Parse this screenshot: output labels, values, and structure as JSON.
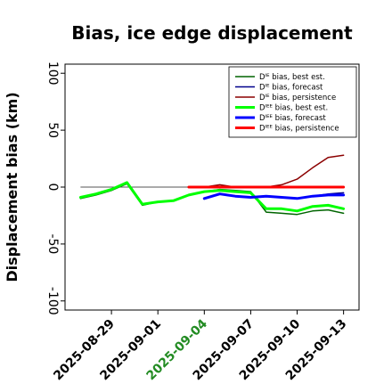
{
  "chart_data": {
    "type": "line",
    "title": "Bias, ice edge displacement",
    "ylabel": "Displacement bias (km)",
    "xlabel": "",
    "ylim": [
      -108,
      108
    ],
    "y_ticks": [
      100,
      50,
      0,
      -50,
      -100
    ],
    "x_ticks": [
      "2025-08-29",
      "2025-09-01",
      "2025-09-04",
      "2025-09-07",
      "2025-09-10",
      "2025-09-13"
    ],
    "x_tick_colors": [
      "#000000",
      "#000000",
      "#228B22",
      "#000000",
      "#000000",
      "#000000"
    ],
    "x_range": [
      "2025-08-26",
      "2025-09-14"
    ],
    "zero_line_range": [
      "2025-08-27",
      "2025-09-13"
    ],
    "legend_position": "upper right",
    "series": [
      {
        "name": "Dᴵᴱ bias, best est.",
        "color": "#006400",
        "width": 1.5,
        "x": [
          "2025-08-27",
          "2025-08-28",
          "2025-08-29",
          "2025-08-30",
          "2025-08-31",
          "2025-09-01",
          "2025-09-02",
          "2025-09-03",
          "2025-09-04",
          "2025-09-05",
          "2025-09-06",
          "2025-09-07",
          "2025-09-08",
          "2025-09-09",
          "2025-09-10",
          "2025-09-11",
          "2025-09-12",
          "2025-09-13"
        ],
        "values": [
          -10,
          -7,
          -3,
          3,
          -16,
          -13,
          -12,
          -7,
          -4,
          -2,
          -3,
          -4,
          -22,
          -23,
          -24,
          -21,
          -20,
          -23
        ]
      },
      {
        "name": "Dᴵᴱ bias, forecast",
        "color": "#00008B",
        "width": 1.5,
        "x": [
          "2025-09-04",
          "2025-09-05",
          "2025-09-06",
          "2025-09-07",
          "2025-09-08",
          "2025-09-09",
          "2025-09-10",
          "2025-09-11",
          "2025-09-12",
          "2025-09-13"
        ],
        "values": [
          -10,
          -6,
          -8,
          -9,
          -8,
          -9,
          -10,
          -8,
          -6,
          -5
        ]
      },
      {
        "name": "Dᴵᴱ bias, persistence",
        "color": "#8B0000",
        "width": 1.5,
        "x": [
          "2025-09-03",
          "2025-09-04",
          "2025-09-05",
          "2025-09-06",
          "2025-09-07",
          "2025-09-08",
          "2025-09-09",
          "2025-09-10",
          "2025-09-11",
          "2025-09-12",
          "2025-09-13"
        ],
        "values": [
          0,
          0,
          2,
          0,
          0,
          0,
          2,
          7,
          17,
          26,
          28
        ]
      },
      {
        "name": "Dᴵᴱᴱ bias, best est.",
        "color": "#00FF00",
        "width": 3,
        "x": [
          "2025-08-27",
          "2025-08-28",
          "2025-08-29",
          "2025-08-30",
          "2025-08-31",
          "2025-09-01",
          "2025-09-02",
          "2025-09-03",
          "2025-09-04",
          "2025-09-05",
          "2025-09-06",
          "2025-09-07",
          "2025-09-08",
          "2025-09-09",
          "2025-09-10",
          "2025-09-11",
          "2025-09-12",
          "2025-09-13"
        ],
        "values": [
          -9,
          -6,
          -2,
          4,
          -15,
          -13,
          -12,
          -7,
          -4,
          -3,
          -4,
          -5,
          -19,
          -19,
          -21,
          -17,
          -16,
          -19
        ]
      },
      {
        "name": "Dᴵᴱᴱ bias, forecast",
        "color": "#0000FF",
        "width": 3,
        "x": [
          "2025-09-04",
          "2025-09-05",
          "2025-09-06",
          "2025-09-07",
          "2025-09-08",
          "2025-09-09",
          "2025-09-10",
          "2025-09-11",
          "2025-09-12",
          "2025-09-13"
        ],
        "values": [
          -10,
          -6,
          -8,
          -9,
          -8,
          -9,
          -10,
          -8,
          -7,
          -7
        ]
      },
      {
        "name": "Dᴵᴱᴱ bias, persistence",
        "color": "#FF0000",
        "width": 3,
        "x": [
          "2025-09-03",
          "2025-09-04",
          "2025-09-05",
          "2025-09-06",
          "2025-09-07",
          "2025-09-08",
          "2025-09-09",
          "2025-09-10",
          "2025-09-11",
          "2025-09-12",
          "2025-09-13"
        ],
        "values": [
          0,
          0,
          0,
          0,
          0,
          0,
          0,
          0,
          0,
          0,
          0
        ]
      }
    ]
  }
}
